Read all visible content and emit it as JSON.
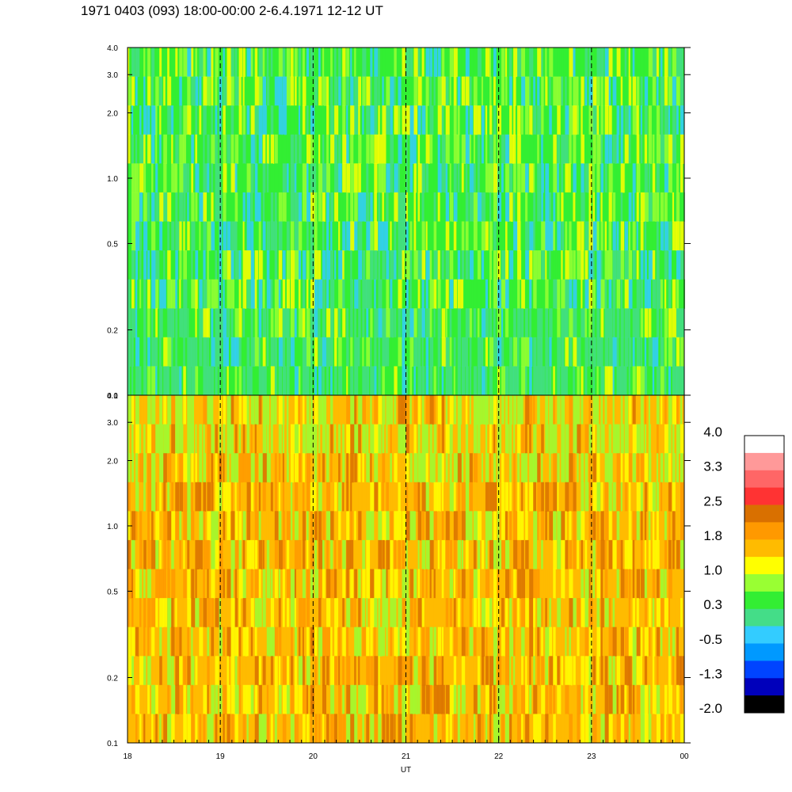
{
  "title": "1971 0403 (093) 18:00-00:00 2-6.4.1971 12-12 UT",
  "chart_data": {
    "type": "heatmap",
    "xlabel": "UT",
    "x_ticks": [
      "18",
      "19",
      "20",
      "21",
      "22",
      "23",
      "00"
    ],
    "x_range": [
      18,
      24
    ],
    "dashed_hours": [
      19,
      20,
      21,
      22,
      23
    ],
    "panels": [
      {
        "id": "upper",
        "y_scale": "log",
        "y_range": [
          0.1,
          4.0
        ],
        "y_ticks": [
          {
            "value": 0.1,
            "label": "0.1"
          },
          {
            "value": 0.2,
            "label": "0.2"
          },
          {
            "value": 0.5,
            "label": "0.5"
          },
          {
            "value": 1.0,
            "label": "1.0"
          },
          {
            "value": 2.0,
            "label": "2.0"
          },
          {
            "value": 3.0,
            "label": "3.0"
          },
          {
            "value": 4.0,
            "label": "4.0"
          }
        ]
      },
      {
        "id": "lower",
        "y_scale": "log",
        "y_range": [
          0.1,
          4.0
        ],
        "y_ticks": [
          {
            "value": 0.1,
            "label": "0.1"
          },
          {
            "value": 0.2,
            "label": "0.2"
          },
          {
            "value": 0.5,
            "label": "0.5"
          },
          {
            "value": 1.0,
            "label": "1.0"
          },
          {
            "value": 2.0,
            "label": "2.0"
          },
          {
            "value": 3.0,
            "label": "3.0"
          },
          {
            "value": 4.0,
            "label": "4.0"
          }
        ]
      }
    ],
    "colorbar": {
      "labels": [
        "4.0",
        "3.3",
        "2.5",
        "1.8",
        "1.0",
        "0.3",
        "-0.5",
        "-1.3",
        "-2.0"
      ],
      "colors": [
        "#ffffff",
        "#ff9999",
        "#ff6666",
        "#ff3333",
        "#d97000",
        "#ff9900",
        "#ffbb00",
        "#ffff00",
        "#99ff33",
        "#33ee33",
        "#44dd88",
        "#33ccff",
        "#0099ff",
        "#0044ff",
        "#0000bb",
        "#000000"
      ]
    }
  }
}
